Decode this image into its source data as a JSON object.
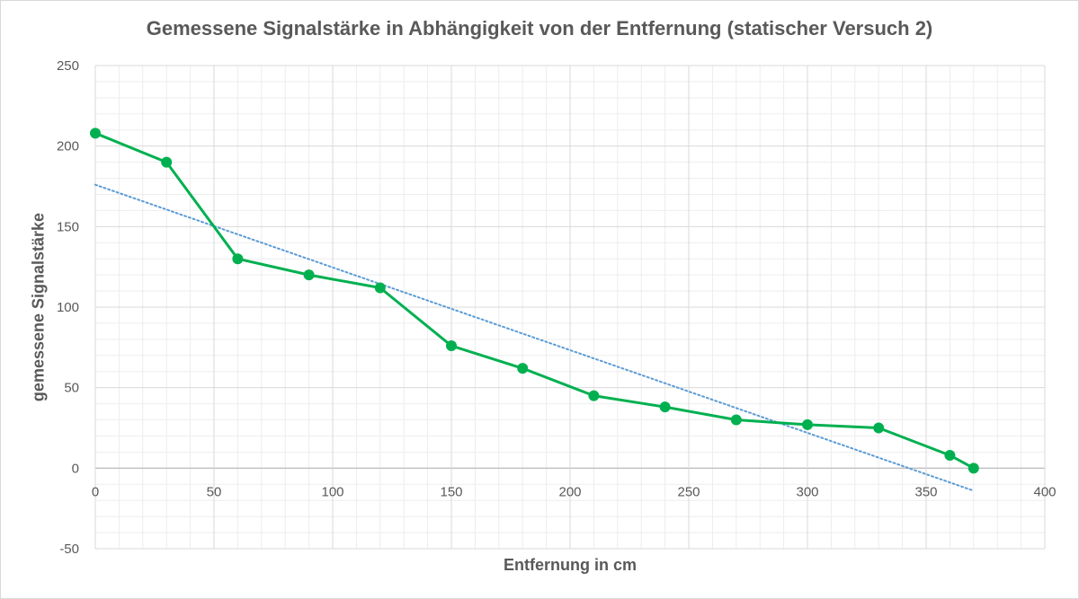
{
  "chart_data": {
    "type": "line",
    "title": "Gemessene Signalstärke in Abhängigkeit von der Entfernung (statischer Versuch 2)",
    "xlabel": "Entfernung in cm",
    "ylabel": "gemessene Signalstärke",
    "xlim": [
      0,
      400
    ],
    "ylim": [
      -50,
      250
    ],
    "x_ticks": [
      0,
      50,
      100,
      150,
      200,
      250,
      300,
      350,
      400
    ],
    "y_ticks": [
      -50,
      0,
      50,
      100,
      150,
      200,
      250
    ],
    "grid": true,
    "legend": "none",
    "series": [
      {
        "type": "line-with-markers",
        "color": "#00b050",
        "x": [
          0,
          30,
          60,
          90,
          120,
          150,
          180,
          210,
          240,
          270,
          300,
          330,
          360,
          370
        ],
        "y": [
          208,
          190,
          130,
          120,
          112,
          76,
          62,
          45,
          38,
          30,
          27,
          25,
          8,
          0
        ]
      },
      {
        "type": "linear-trendline",
        "color": "#5b9bd5",
        "style": "dotted",
        "x": [
          0,
          370
        ],
        "y": [
          176,
          -14
        ]
      }
    ]
  }
}
